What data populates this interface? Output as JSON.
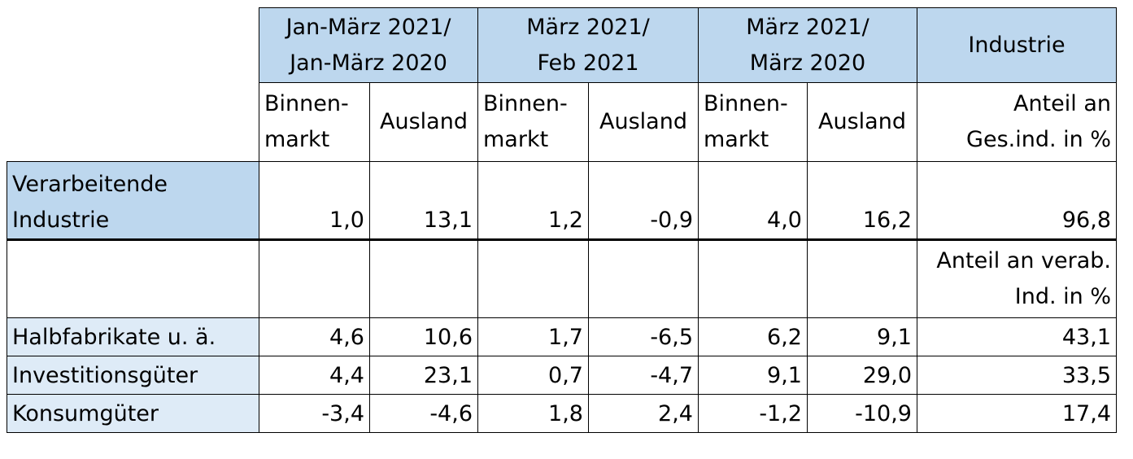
{
  "header": {
    "group1": [
      "Jan-März 2021/",
      "Jan-März 2020"
    ],
    "group2": [
      "März 2021/",
      "Feb 2021"
    ],
    "group3": [
      "März 2021/",
      "März 2020"
    ],
    "group4": "Industrie",
    "binnenmarkt": [
      "Binnen-",
      "markt"
    ],
    "ausland": "Ausland",
    "anteil_ges": [
      "Anteil an",
      "Ges.ind. in %"
    ]
  },
  "rows": {
    "verarbeitende": {
      "label": [
        "Verarbeitende",
        "Industrie"
      ],
      "values": [
        "1,0",
        "13,1",
        "1,2",
        "-0,9",
        "4,0",
        "16,2",
        "96,8"
      ]
    },
    "anteil_verab": [
      "Anteil an verab.",
      "Ind. in %"
    ],
    "halbfabrikate": {
      "label": "Halbfabrikate u. ä.",
      "values": [
        "4,6",
        "10,6",
        "1,7",
        "-6,5",
        "6,2",
        "9,1",
        "43,1"
      ]
    },
    "investitionsgueter": {
      "label": "Investitionsgüter",
      "values": [
        "4,4",
        "23,1",
        "0,7",
        "-4,7",
        "9,1",
        "29,0",
        "33,5"
      ]
    },
    "konsumgueter": {
      "label": "Konsumgüter",
      "values": [
        "-3,4",
        "-4,6",
        "1,8",
        "2,4",
        "-1,2",
        "-10,9",
        "17,4"
      ]
    }
  },
  "colors": {
    "header_blue": "#bdd7ee",
    "label_light_blue": "#deebf7",
    "border": "#000000"
  }
}
